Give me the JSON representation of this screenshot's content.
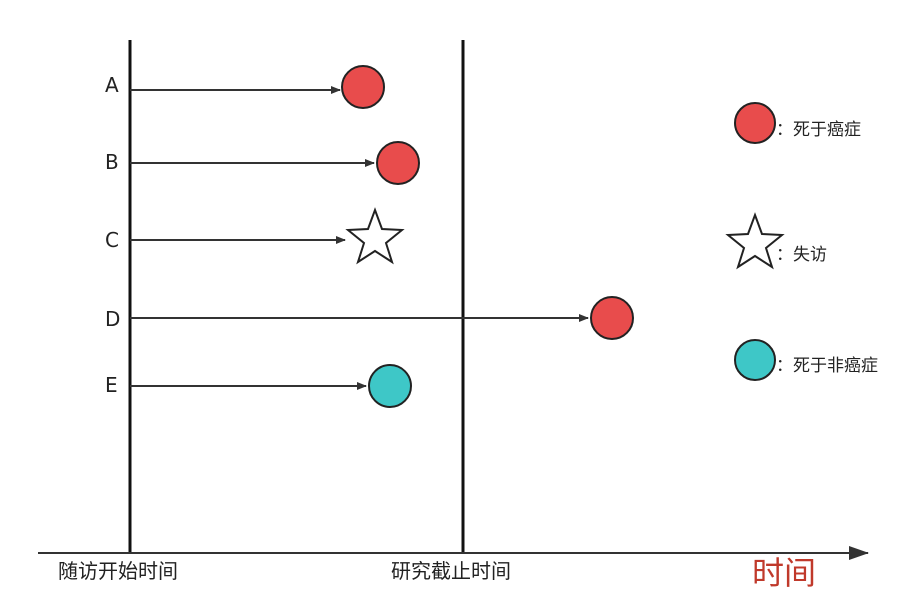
{
  "subjects": [
    {
      "label": "A",
      "outcome": "cancer_death"
    },
    {
      "label": "B",
      "outcome": "cancer_death"
    },
    {
      "label": "C",
      "outcome": "lost"
    },
    {
      "label": "D",
      "outcome": "cancer_death"
    },
    {
      "label": "E",
      "outcome": "other_death"
    }
  ],
  "legend": {
    "cancer_death": "：死于癌症",
    "lost": "：失访",
    "other_death": "：死于非癌症"
  },
  "axis": {
    "start_label": "随访开始时间",
    "cutoff_label": "研究截止时间",
    "time_label": "时间"
  },
  "colors": {
    "cancer_death": "#e84c4c",
    "other_death": "#3ec7c7",
    "time_label": "#c0392b",
    "line": "#222222"
  }
}
